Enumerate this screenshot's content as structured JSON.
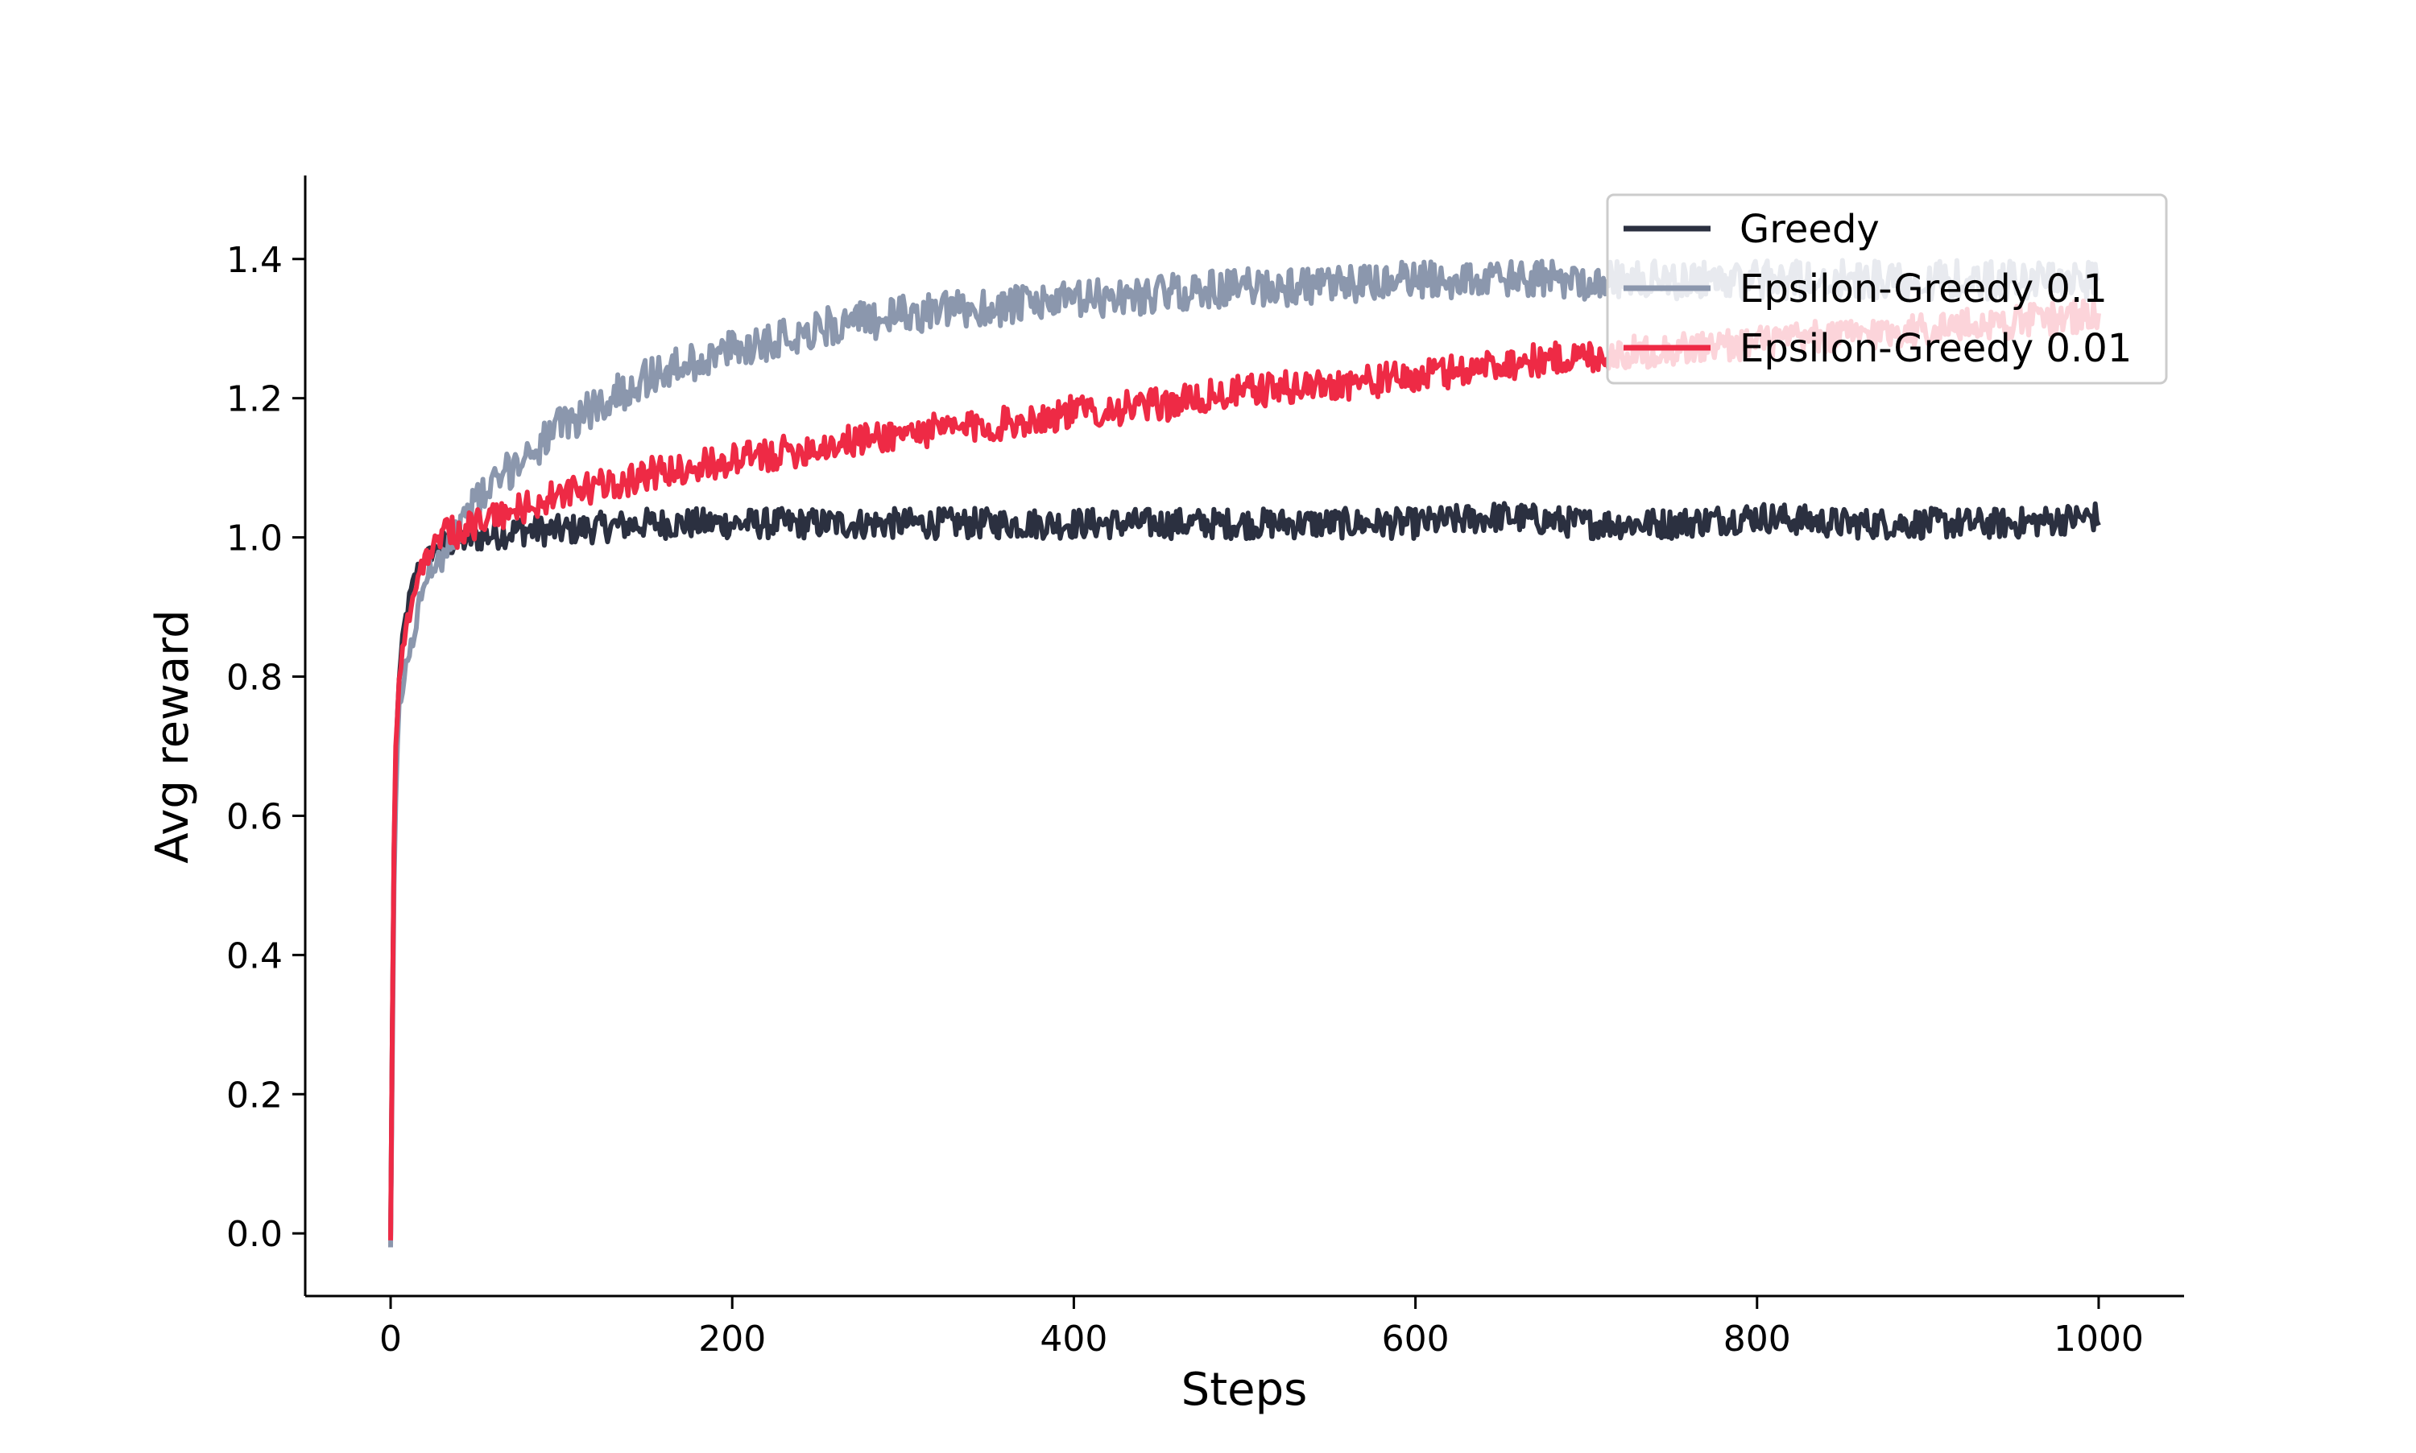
{
  "chart_data": {
    "type": "line",
    "title": "",
    "xlabel": "Steps",
    "ylabel": "Avg reward",
    "xlim": [
      -50,
      1050
    ],
    "ylim": [
      -0.09,
      1.52
    ],
    "xticks": [
      0,
      200,
      400,
      600,
      800,
      1000
    ],
    "yticks": [
      0.0,
      0.2,
      0.4,
      0.6,
      0.8,
      1.0,
      1.2,
      1.4
    ],
    "xtick_labels": [
      "0",
      "200",
      "400",
      "600",
      "800",
      "1000"
    ],
    "ytick_labels": [
      "0.0",
      "0.2",
      "0.4",
      "0.6",
      "0.8",
      "1.0",
      "1.2",
      "1.4"
    ],
    "grid": false,
    "legend_position": "upper-right",
    "series": [
      {
        "name": "Greedy",
        "color": "#2b3040",
        "x": [
          0,
          1,
          2,
          3,
          5,
          8,
          10,
          15,
          20,
          30,
          50,
          75,
          100,
          150,
          200,
          250,
          300,
          350,
          400,
          450,
          500,
          550,
          600,
          650,
          700,
          750,
          800,
          850,
          900,
          950,
          1000
        ],
        "y": [
          -0.01,
          0.3,
          0.55,
          0.68,
          0.8,
          0.87,
          0.9,
          0.95,
          0.97,
          0.99,
          1.0,
          1.01,
          1.01,
          1.02,
          1.02,
          1.02,
          1.02,
          1.02,
          1.02,
          1.02,
          1.02,
          1.02,
          1.02,
          1.03,
          1.02,
          1.02,
          1.03,
          1.02,
          1.02,
          1.02,
          1.03
        ]
      },
      {
        "name": "Epsilon-Greedy 0.1",
        "color": "#8b97ad",
        "x": [
          0,
          1,
          2,
          3,
          5,
          8,
          10,
          15,
          20,
          30,
          50,
          75,
          100,
          150,
          200,
          250,
          300,
          350,
          400,
          450,
          500,
          550,
          600,
          650,
          700,
          750,
          800,
          850,
          900,
          950,
          1000
        ],
        "y": [
          -0.02,
          0.25,
          0.5,
          0.62,
          0.75,
          0.8,
          0.82,
          0.88,
          0.94,
          0.98,
          1.05,
          1.11,
          1.16,
          1.23,
          1.27,
          1.3,
          1.32,
          1.33,
          1.34,
          1.35,
          1.36,
          1.36,
          1.37,
          1.37,
          1.37,
          1.37,
          1.37,
          1.37,
          1.37,
          1.37,
          1.37
        ]
      },
      {
        "name": "Epsilon-Greedy 0.01",
        "color": "#ee2a45",
        "x": [
          0,
          1,
          2,
          3,
          5,
          8,
          10,
          15,
          20,
          30,
          50,
          75,
          100,
          150,
          200,
          250,
          300,
          350,
          400,
          450,
          500,
          550,
          600,
          650,
          700,
          750,
          800,
          850,
          900,
          950,
          1000
        ],
        "y": [
          -0.01,
          0.3,
          0.56,
          0.7,
          0.8,
          0.86,
          0.88,
          0.93,
          0.97,
          1.0,
          1.02,
          1.04,
          1.06,
          1.09,
          1.11,
          1.13,
          1.15,
          1.16,
          1.18,
          1.19,
          1.21,
          1.22,
          1.23,
          1.25,
          1.26,
          1.27,
          1.28,
          1.29,
          1.3,
          1.31,
          1.32
        ]
      }
    ]
  }
}
